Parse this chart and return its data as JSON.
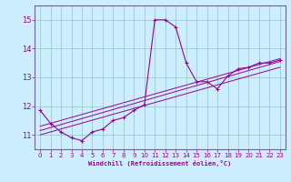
{
  "xlabel": "Windchill (Refroidissement éolien,°C)",
  "bg_color": "#cceeff",
  "grid_color": "#99cccc",
  "line_color": "#990099",
  "spine_color": "#666699",
  "xlim": [
    -0.5,
    23.5
  ],
  "ylim": [
    10.5,
    15.5
  ],
  "yticks": [
    11,
    12,
    13,
    14,
    15
  ],
  "xticks": [
    0,
    1,
    2,
    3,
    4,
    5,
    6,
    7,
    8,
    9,
    10,
    11,
    12,
    13,
    14,
    15,
    16,
    17,
    18,
    19,
    20,
    21,
    22,
    23
  ],
  "main_x": [
    0,
    1,
    2,
    3,
    4,
    5,
    6,
    7,
    8,
    9,
    10,
    11,
    12,
    13,
    14,
    15,
    16,
    17,
    18,
    19,
    20,
    21,
    22,
    23
  ],
  "main_y": [
    11.85,
    11.4,
    11.1,
    10.9,
    10.8,
    11.1,
    11.2,
    11.5,
    11.6,
    11.85,
    12.05,
    15.0,
    15.0,
    14.75,
    13.5,
    12.85,
    12.85,
    12.6,
    13.05,
    13.3,
    13.35,
    13.5,
    13.5,
    13.6
  ],
  "trend1_x": [
    0,
    23
  ],
  "trend1_y": [
    11.15,
    13.55
  ],
  "trend2_x": [
    0,
    23
  ],
  "trend2_y": [
    11.0,
    13.35
  ],
  "trend3_x": [
    0,
    23
  ],
  "trend3_y": [
    11.3,
    13.65
  ]
}
